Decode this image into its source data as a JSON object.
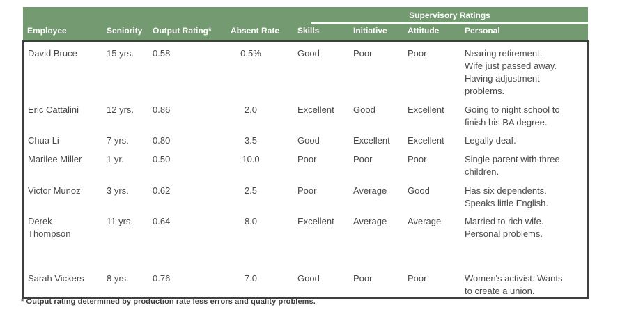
{
  "table": {
    "spanner": "Supervisory Ratings",
    "columns": [
      "Employee",
      "Seniority",
      "Output Rating*",
      "Absent Rate",
      "Skills",
      "Initiative",
      "Attitude",
      "Personal"
    ],
    "rows": [
      {
        "employee_lines": [
          "David Bruce"
        ],
        "seniority": "15 yrs.",
        "output_rating": "0.58",
        "absent_rate": "0.5%",
        "skills": "Good",
        "initiative": "Poor",
        "attitude": "Poor",
        "personal_lines": [
          "Nearing retirement.",
          "Wife just passed away.",
          "Having adjustment",
          "problems."
        ]
      },
      {
        "employee_lines": [
          "Eric Cattalini"
        ],
        "seniority": "12 yrs.",
        "output_rating": "0.86",
        "absent_rate": "2.0",
        "skills": "Excellent",
        "initiative": "Good",
        "attitude": "Excellent",
        "personal_lines": [
          "Going to night school to",
          "finish his BA degree."
        ]
      },
      {
        "employee_lines": [
          "Chua Li"
        ],
        "seniority": "7 yrs.",
        "output_rating": "0.80",
        "absent_rate": "3.5",
        "skills": "Good",
        "initiative": "Excellent",
        "attitude": "Excellent",
        "personal_lines": [
          "Legally deaf."
        ]
      },
      {
        "employee_lines": [
          "Marilee Miller"
        ],
        "seniority": "1 yr.",
        "output_rating": "0.50",
        "absent_rate": "10.0",
        "skills": "Poor",
        "initiative": "Poor",
        "attitude": "Poor",
        "personal_lines": [
          "Single parent with three",
          "children."
        ]
      },
      {
        "employee_lines": [
          "Victor Munoz"
        ],
        "seniority": "3 yrs.",
        "output_rating": "0.62",
        "absent_rate": "2.5",
        "skills": "Poor",
        "initiative": "Average",
        "attitude": "Good",
        "personal_lines": [
          "Has six dependents.",
          "Speaks little English."
        ]
      },
      {
        "employee_lines": [
          "Derek",
          "Thompson"
        ],
        "seniority": "11 yrs.",
        "output_rating": "0.64",
        "absent_rate": "8.0",
        "skills": "Excellent",
        "initiative": "Average",
        "attitude": "Average",
        "personal_lines": [
          "Married to rich wife.",
          "Personal problems."
        ]
      },
      {
        "employee_lines": [
          "Sarah Vickers"
        ],
        "seniority": "8 yrs.",
        "output_rating": "0.76",
        "absent_rate": "7.0",
        "skills": "Good",
        "initiative": "Poor",
        "attitude": "Poor",
        "personal_lines": [
          "Women's activist. Wants",
          "to create a union."
        ]
      }
    ],
    "footnote": "* Output rating determined by production rate less errors and quality problems."
  },
  "colors": {
    "header_green": "#739a70",
    "border": "#3f3f3f",
    "text": "#47494b",
    "header_text": "#ffffff"
  }
}
